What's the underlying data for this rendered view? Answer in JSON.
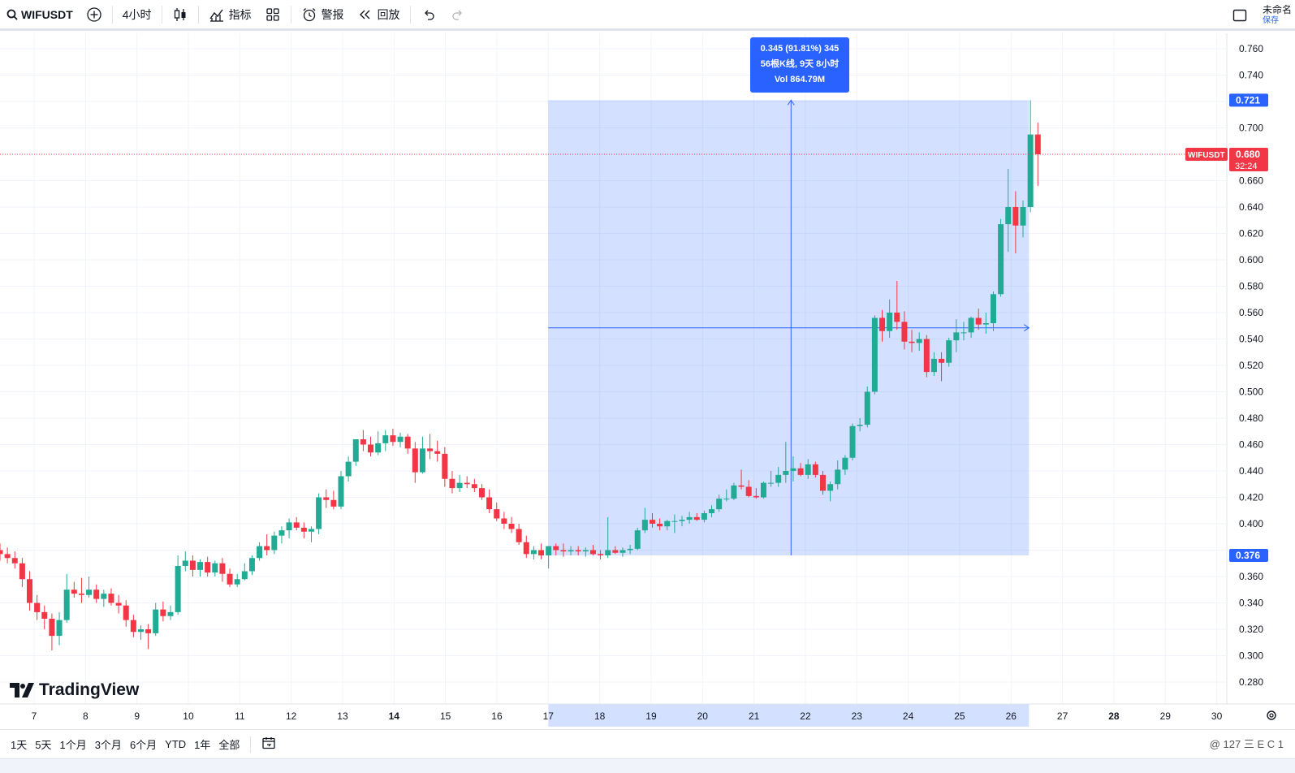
{
  "toolbar": {
    "symbol": "WIFUSDT",
    "interval": "4小时",
    "indicators": "指标",
    "alert": "警报",
    "replay": "回放",
    "unsaved_title": "未命名",
    "unsaved_sub": "保存"
  },
  "icons": {
    "search": "search-icon",
    "add": "plus-circle-icon",
    "candles": "candlestick-icon",
    "indicators": "indicators-icon",
    "layout": "layout-grid-icon",
    "alert": "alarm-clock-icon",
    "replay": "rewind-icon",
    "undo": "undo-icon",
    "redo": "redo-icon",
    "fullscreen": "square-icon",
    "settings": "gear-icon",
    "date_range": "calendar-icon"
  },
  "bottombar": {
    "ranges": [
      "1天",
      "5天",
      "1个月",
      "3个月",
      "6个月",
      "YTD",
      "1年",
      "全部"
    ],
    "watermark": "@ 127 三 E C 1"
  },
  "branding": {
    "logo_text": "TradingView"
  },
  "measure": {
    "line1": "0.345 (91.81%) 345",
    "line2": "56根K线, 9天 8小时",
    "line3": "Vol 864.79M",
    "high_label": "0.721",
    "low_label": "0.376"
  },
  "price_label": {
    "symbol": "WIFUSDT",
    "price": "0.680",
    "countdown": "32:24"
  },
  "colors": {
    "up": "#22ab94",
    "down": "#f23645",
    "measure_fill": "#2962ff",
    "grid": "#f0f3fa",
    "text": "#131722"
  },
  "chart_data": {
    "type": "candlestick",
    "y_ticks": [
      "0.760",
      "0.740",
      "0.720",
      "0.700",
      "0.680",
      "0.660",
      "0.640",
      "0.620",
      "0.600",
      "0.580",
      "0.560",
      "0.540",
      "0.520",
      "0.500",
      "0.480",
      "0.460",
      "0.440",
      "0.420",
      "0.400",
      "0.380",
      "0.360",
      "0.340",
      "0.320",
      "0.300",
      "0.280"
    ],
    "y_tick_labels_shown": [
      "0.760",
      "0.740",
      "0.700",
      "0.660",
      "0.640",
      "0.620",
      "0.600",
      "0.580",
      "0.560",
      "0.540",
      "0.520",
      "0.500",
      "0.480",
      "0.460",
      "0.440",
      "0.420",
      "0.400",
      "0.360",
      "0.340",
      "0.320",
      "0.300",
      "0.280"
    ],
    "ylim": [
      0.272,
      0.772
    ],
    "x_labels": [
      "7",
      "8",
      "9",
      "10",
      "11",
      "12",
      "13",
      "14",
      "15",
      "16",
      "17",
      "18",
      "19",
      "20",
      "21",
      "22",
      "23",
      "24",
      "25",
      "26",
      "27",
      "28",
      "29",
      "30"
    ],
    "bold_x_labels": [
      "14",
      "28"
    ],
    "candles": [
      {
        "o": 0.38,
        "h": 0.385,
        "l": 0.372,
        "c": 0.377
      },
      {
        "o": 0.377,
        "h": 0.382,
        "l": 0.37,
        "c": 0.374
      },
      {
        "o": 0.374,
        "h": 0.379,
        "l": 0.366,
        "c": 0.37
      },
      {
        "o": 0.37,
        "h": 0.374,
        "l": 0.352,
        "c": 0.358
      },
      {
        "o": 0.358,
        "h": 0.364,
        "l": 0.334,
        "c": 0.34
      },
      {
        "o": 0.34,
        "h": 0.346,
        "l": 0.327,
        "c": 0.333
      },
      {
        "o": 0.333,
        "h": 0.338,
        "l": 0.32,
        "c": 0.328
      },
      {
        "o": 0.328,
        "h": 0.332,
        "l": 0.304,
        "c": 0.315
      },
      {
        "o": 0.315,
        "h": 0.333,
        "l": 0.308,
        "c": 0.327
      },
      {
        "o": 0.327,
        "h": 0.362,
        "l": 0.325,
        "c": 0.35
      },
      {
        "o": 0.35,
        "h": 0.356,
        "l": 0.344,
        "c": 0.347
      },
      {
        "o": 0.347,
        "h": 0.359,
        "l": 0.34,
        "c": 0.346
      },
      {
        "o": 0.346,
        "h": 0.36,
        "l": 0.344,
        "c": 0.35
      },
      {
        "o": 0.35,
        "h": 0.354,
        "l": 0.34,
        "c": 0.343
      },
      {
        "o": 0.343,
        "h": 0.35,
        "l": 0.337,
        "c": 0.347
      },
      {
        "o": 0.347,
        "h": 0.351,
        "l": 0.338,
        "c": 0.34
      },
      {
        "o": 0.34,
        "h": 0.346,
        "l": 0.332,
        "c": 0.338
      },
      {
        "o": 0.338,
        "h": 0.342,
        "l": 0.322,
        "c": 0.327
      },
      {
        "o": 0.327,
        "h": 0.331,
        "l": 0.314,
        "c": 0.318
      },
      {
        "o": 0.318,
        "h": 0.323,
        "l": 0.312,
        "c": 0.32
      },
      {
        "o": 0.32,
        "h": 0.324,
        "l": 0.305,
        "c": 0.317
      },
      {
        "o": 0.317,
        "h": 0.34,
        "l": 0.315,
        "c": 0.335
      },
      {
        "o": 0.335,
        "h": 0.341,
        "l": 0.326,
        "c": 0.33
      },
      {
        "o": 0.33,
        "h": 0.338,
        "l": 0.327,
        "c": 0.333
      },
      {
        "o": 0.333,
        "h": 0.376,
        "l": 0.331,
        "c": 0.368
      },
      {
        "o": 0.368,
        "h": 0.379,
        "l": 0.364,
        "c": 0.372
      },
      {
        "o": 0.372,
        "h": 0.376,
        "l": 0.36,
        "c": 0.365
      },
      {
        "o": 0.365,
        "h": 0.373,
        "l": 0.36,
        "c": 0.371
      },
      {
        "o": 0.371,
        "h": 0.375,
        "l": 0.36,
        "c": 0.363
      },
      {
        "o": 0.363,
        "h": 0.372,
        "l": 0.36,
        "c": 0.37
      },
      {
        "o": 0.37,
        "h": 0.374,
        "l": 0.356,
        "c": 0.362
      },
      {
        "o": 0.362,
        "h": 0.366,
        "l": 0.352,
        "c": 0.354
      },
      {
        "o": 0.354,
        "h": 0.362,
        "l": 0.352,
        "c": 0.358
      },
      {
        "o": 0.358,
        "h": 0.37,
        "l": 0.357,
        "c": 0.364
      },
      {
        "o": 0.364,
        "h": 0.376,
        "l": 0.361,
        "c": 0.374
      },
      {
        "o": 0.374,
        "h": 0.386,
        "l": 0.372,
        "c": 0.383
      },
      {
        "o": 0.383,
        "h": 0.392,
        "l": 0.376,
        "c": 0.38
      },
      {
        "o": 0.38,
        "h": 0.394,
        "l": 0.377,
        "c": 0.391
      },
      {
        "o": 0.391,
        "h": 0.398,
        "l": 0.385,
        "c": 0.395
      },
      {
        "o": 0.395,
        "h": 0.404,
        "l": 0.389,
        "c": 0.401
      },
      {
        "o": 0.401,
        "h": 0.405,
        "l": 0.395,
        "c": 0.397
      },
      {
        "o": 0.397,
        "h": 0.401,
        "l": 0.389,
        "c": 0.394
      },
      {
        "o": 0.394,
        "h": 0.398,
        "l": 0.386,
        "c": 0.396
      },
      {
        "o": 0.396,
        "h": 0.423,
        "l": 0.392,
        "c": 0.42
      },
      {
        "o": 0.42,
        "h": 0.426,
        "l": 0.412,
        "c": 0.418
      },
      {
        "o": 0.418,
        "h": 0.425,
        "l": 0.411,
        "c": 0.413
      },
      {
        "o": 0.413,
        "h": 0.44,
        "l": 0.411,
        "c": 0.436
      },
      {
        "o": 0.436,
        "h": 0.451,
        "l": 0.432,
        "c": 0.447
      },
      {
        "o": 0.447,
        "h": 0.461,
        "l": 0.444,
        "c": 0.464
      },
      {
        "o": 0.464,
        "h": 0.471,
        "l": 0.455,
        "c": 0.46
      },
      {
        "o": 0.46,
        "h": 0.466,
        "l": 0.451,
        "c": 0.454
      },
      {
        "o": 0.454,
        "h": 0.47,
        "l": 0.452,
        "c": 0.461
      },
      {
        "o": 0.461,
        "h": 0.471,
        "l": 0.455,
        "c": 0.467
      },
      {
        "o": 0.467,
        "h": 0.472,
        "l": 0.459,
        "c": 0.462
      },
      {
        "o": 0.462,
        "h": 0.469,
        "l": 0.458,
        "c": 0.466
      },
      {
        "o": 0.466,
        "h": 0.468,
        "l": 0.453,
        "c": 0.457
      },
      {
        "o": 0.457,
        "h": 0.462,
        "l": 0.431,
        "c": 0.439
      },
      {
        "o": 0.439,
        "h": 0.466,
        "l": 0.438,
        "c": 0.457
      },
      {
        "o": 0.457,
        "h": 0.468,
        "l": 0.449,
        "c": 0.455
      },
      {
        "o": 0.455,
        "h": 0.463,
        "l": 0.447,
        "c": 0.453
      },
      {
        "o": 0.453,
        "h": 0.458,
        "l": 0.428,
        "c": 0.434
      },
      {
        "o": 0.434,
        "h": 0.44,
        "l": 0.423,
        "c": 0.427
      },
      {
        "o": 0.427,
        "h": 0.437,
        "l": 0.424,
        "c": 0.431
      },
      {
        "o": 0.431,
        "h": 0.436,
        "l": 0.427,
        "c": 0.43
      },
      {
        "o": 0.43,
        "h": 0.434,
        "l": 0.424,
        "c": 0.427
      },
      {
        "o": 0.427,
        "h": 0.43,
        "l": 0.418,
        "c": 0.42
      },
      {
        "o": 0.42,
        "h": 0.426,
        "l": 0.408,
        "c": 0.411
      },
      {
        "o": 0.411,
        "h": 0.416,
        "l": 0.402,
        "c": 0.404
      },
      {
        "o": 0.404,
        "h": 0.409,
        "l": 0.396,
        "c": 0.4
      },
      {
        "o": 0.4,
        "h": 0.405,
        "l": 0.393,
        "c": 0.396
      },
      {
        "o": 0.396,
        "h": 0.4,
        "l": 0.384,
        "c": 0.386
      },
      {
        "o": 0.386,
        "h": 0.391,
        "l": 0.374,
        "c": 0.377
      },
      {
        "o": 0.377,
        "h": 0.383,
        "l": 0.373,
        "c": 0.38
      },
      {
        "o": 0.38,
        "h": 0.385,
        "l": 0.373,
        "c": 0.376
      },
      {
        "o": 0.376,
        "h": 0.383,
        "l": 0.366,
        "c": 0.383
      },
      {
        "o": 0.383,
        "h": 0.385,
        "l": 0.376,
        "c": 0.38
      },
      {
        "o": 0.38,
        "h": 0.385,
        "l": 0.375,
        "c": 0.379
      },
      {
        "o": 0.379,
        "h": 0.383,
        "l": 0.376,
        "c": 0.38
      },
      {
        "o": 0.38,
        "h": 0.383,
        "l": 0.376,
        "c": 0.379
      },
      {
        "o": 0.379,
        "h": 0.382,
        "l": 0.375,
        "c": 0.38
      },
      {
        "o": 0.38,
        "h": 0.384,
        "l": 0.376,
        "c": 0.377
      },
      {
        "o": 0.377,
        "h": 0.38,
        "l": 0.373,
        "c": 0.376
      },
      {
        "o": 0.376,
        "h": 0.405,
        "l": 0.374,
        "c": 0.38
      },
      {
        "o": 0.38,
        "h": 0.383,
        "l": 0.377,
        "c": 0.378
      },
      {
        "o": 0.378,
        "h": 0.382,
        "l": 0.375,
        "c": 0.38
      },
      {
        "o": 0.38,
        "h": 0.384,
        "l": 0.377,
        "c": 0.381
      },
      {
        "o": 0.381,
        "h": 0.397,
        "l": 0.38,
        "c": 0.395
      },
      {
        "o": 0.395,
        "h": 0.412,
        "l": 0.393,
        "c": 0.403
      },
      {
        "o": 0.403,
        "h": 0.408,
        "l": 0.397,
        "c": 0.4
      },
      {
        "o": 0.4,
        "h": 0.404,
        "l": 0.395,
        "c": 0.398
      },
      {
        "o": 0.398,
        "h": 0.403,
        "l": 0.395,
        "c": 0.402
      },
      {
        "o": 0.402,
        "h": 0.407,
        "l": 0.393,
        "c": 0.402
      },
      {
        "o": 0.402,
        "h": 0.406,
        "l": 0.398,
        "c": 0.403
      },
      {
        "o": 0.403,
        "h": 0.409,
        "l": 0.4,
        "c": 0.405
      },
      {
        "o": 0.405,
        "h": 0.408,
        "l": 0.402,
        "c": 0.403
      },
      {
        "o": 0.403,
        "h": 0.41,
        "l": 0.401,
        "c": 0.408
      },
      {
        "o": 0.408,
        "h": 0.414,
        "l": 0.405,
        "c": 0.411
      },
      {
        "o": 0.411,
        "h": 0.422,
        "l": 0.409,
        "c": 0.419
      },
      {
        "o": 0.419,
        "h": 0.426,
        "l": 0.417,
        "c": 0.419
      },
      {
        "o": 0.419,
        "h": 0.431,
        "l": 0.418,
        "c": 0.429
      },
      {
        "o": 0.429,
        "h": 0.441,
        "l": 0.426,
        "c": 0.428
      },
      {
        "o": 0.428,
        "h": 0.433,
        "l": 0.42,
        "c": 0.421
      },
      {
        "o": 0.421,
        "h": 0.427,
        "l": 0.419,
        "c": 0.42
      },
      {
        "o": 0.42,
        "h": 0.432,
        "l": 0.419,
        "c": 0.431
      },
      {
        "o": 0.431,
        "h": 0.44,
        "l": 0.428,
        "c": 0.431
      },
      {
        "o": 0.431,
        "h": 0.443,
        "l": 0.428,
        "c": 0.437
      },
      {
        "o": 0.437,
        "h": 0.462,
        "l": 0.431,
        "c": 0.44
      },
      {
        "o": 0.44,
        "h": 0.451,
        "l": 0.432,
        "c": 0.442
      },
      {
        "o": 0.442,
        "h": 0.446,
        "l": 0.436,
        "c": 0.437
      },
      {
        "o": 0.437,
        "h": 0.449,
        "l": 0.434,
        "c": 0.445
      },
      {
        "o": 0.445,
        "h": 0.447,
        "l": 0.435,
        "c": 0.437
      },
      {
        "o": 0.437,
        "h": 0.44,
        "l": 0.422,
        "c": 0.425
      },
      {
        "o": 0.425,
        "h": 0.432,
        "l": 0.417,
        "c": 0.43
      },
      {
        "o": 0.43,
        "h": 0.448,
        "l": 0.426,
        "c": 0.441
      },
      {
        "o": 0.441,
        "h": 0.452,
        "l": 0.437,
        "c": 0.45
      },
      {
        "o": 0.45,
        "h": 0.476,
        "l": 0.448,
        "c": 0.474
      },
      {
        "o": 0.474,
        "h": 0.48,
        "l": 0.47,
        "c": 0.475
      },
      {
        "o": 0.475,
        "h": 0.504,
        "l": 0.473,
        "c": 0.5
      },
      {
        "o": 0.5,
        "h": 0.558,
        "l": 0.498,
        "c": 0.556
      },
      {
        "o": 0.556,
        "h": 0.562,
        "l": 0.538,
        "c": 0.546
      },
      {
        "o": 0.546,
        "h": 0.57,
        "l": 0.541,
        "c": 0.56
      },
      {
        "o": 0.56,
        "h": 0.584,
        "l": 0.547,
        "c": 0.553
      },
      {
        "o": 0.553,
        "h": 0.561,
        "l": 0.532,
        "c": 0.538
      },
      {
        "o": 0.538,
        "h": 0.547,
        "l": 0.53,
        "c": 0.537
      },
      {
        "o": 0.537,
        "h": 0.545,
        "l": 0.531,
        "c": 0.54
      },
      {
        "o": 0.54,
        "h": 0.543,
        "l": 0.511,
        "c": 0.515
      },
      {
        "o": 0.515,
        "h": 0.53,
        "l": 0.512,
        "c": 0.525
      },
      {
        "o": 0.525,
        "h": 0.53,
        "l": 0.508,
        "c": 0.522
      },
      {
        "o": 0.522,
        "h": 0.541,
        "l": 0.519,
        "c": 0.539
      },
      {
        "o": 0.539,
        "h": 0.555,
        "l": 0.53,
        "c": 0.545
      },
      {
        "o": 0.545,
        "h": 0.553,
        "l": 0.539,
        "c": 0.545
      },
      {
        "o": 0.545,
        "h": 0.557,
        "l": 0.541,
        "c": 0.556
      },
      {
        "o": 0.556,
        "h": 0.563,
        "l": 0.547,
        "c": 0.551
      },
      {
        "o": 0.551,
        "h": 0.56,
        "l": 0.544,
        "c": 0.552
      },
      {
        "o": 0.552,
        "h": 0.576,
        "l": 0.546,
        "c": 0.574
      },
      {
        "o": 0.574,
        "h": 0.631,
        "l": 0.572,
        "c": 0.627
      },
      {
        "o": 0.627,
        "h": 0.669,
        "l": 0.606,
        "c": 0.64
      },
      {
        "o": 0.64,
        "h": 0.652,
        "l": 0.605,
        "c": 0.626
      },
      {
        "o": 0.626,
        "h": 0.645,
        "l": 0.617,
        "c": 0.64
      },
      {
        "o": 0.64,
        "h": 0.721,
        "l": 0.636,
        "c": 0.695
      },
      {
        "o": 0.695,
        "h": 0.704,
        "l": 0.656,
        "c": 0.68
      }
    ]
  }
}
